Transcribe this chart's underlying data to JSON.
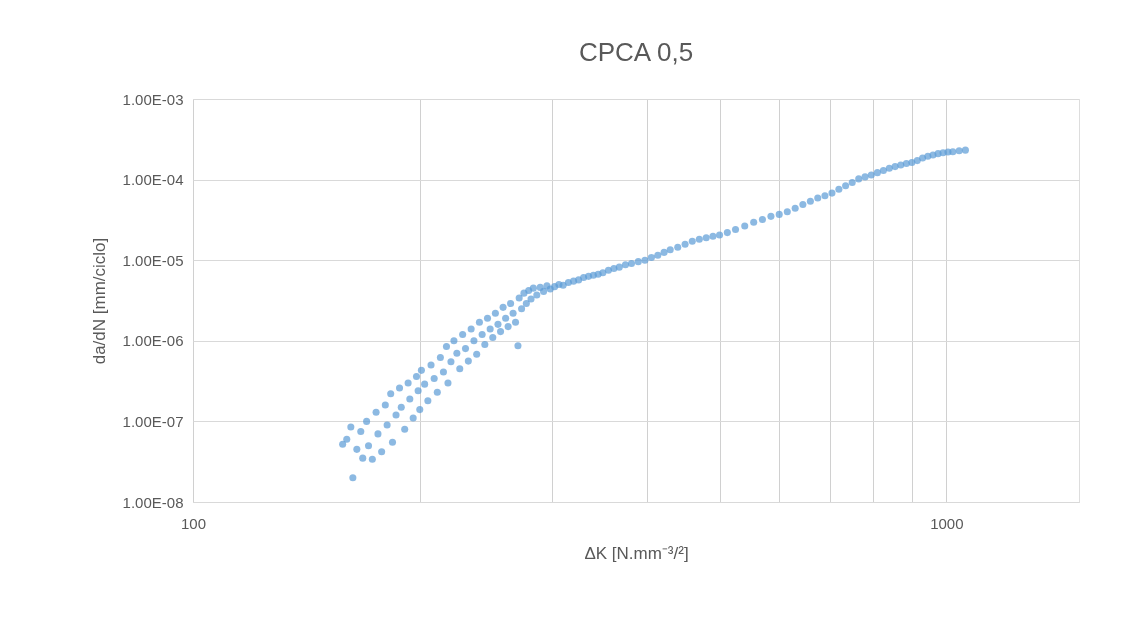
{
  "chart_data": {
    "type": "scatter",
    "title": "CPCA 0,5",
    "xlabel": "ΔK [N.mm⁻³/²]",
    "ylabel": "da/dN [mm/ciclo]",
    "log": "xy",
    "grid": true,
    "marker": "circle",
    "xlim": [
      100,
      1500
    ],
    "ylim": [
      1e-08,
      0.001
    ],
    "xticks": [
      100,
      {
        "value": 200,
        "label": null
      },
      {
        "value": 300,
        "label": null
      },
      {
        "value": 400,
        "label": null
      },
      {
        "value": 500,
        "label": null
      },
      {
        "value": 600,
        "label": null
      },
      {
        "value": 700,
        "label": null
      },
      {
        "value": 800,
        "label": null
      },
      {
        "value": 900,
        "label": null
      },
      1000
    ],
    "yticks": [
      {
        "value": 1e-08,
        "label": "1.00E-08"
      },
      {
        "value": 1e-07,
        "label": "1.00E-07"
      },
      {
        "value": 1e-06,
        "label": "1.00E-06"
      },
      {
        "value": 1e-05,
        "label": "1.00E-05"
      },
      {
        "value": 0.0001,
        "label": "1.00E-04"
      },
      {
        "value": 0.001,
        "label": "1.00E-03"
      }
    ],
    "x": [
      160,
      158,
      162,
      163,
      165,
      167,
      168,
      170,
      171,
      173,
      175,
      176,
      178,
      180,
      181,
      183,
      184,
      186,
      188,
      189,
      191,
      193,
      194,
      196,
      198,
      199,
      200,
      201,
      203,
      205,
      207,
      209,
      211,
      213,
      215,
      217,
      218,
      220,
      222,
      224,
      226,
      228,
      230,
      232,
      234,
      236,
      238,
      240,
      242,
      244,
      246,
      248,
      250,
      252,
      254,
      256,
      258,
      260,
      262,
      264,
      266,
      268,
      270,
      271,
      273,
      275,
      277,
      279,
      281,
      283,
      286,
      289,
      292,
      295,
      298,
      302,
      306,
      310,
      315,
      320,
      325,
      330,
      335,
      340,
      345,
      350,
      356,
      362,
      368,
      375,
      382,
      390,
      398,
      406,
      414,
      422,
      430,
      440,
      450,
      460,
      470,
      480,
      490,
      500,
      512,
      525,
      540,
      555,
      570,
      585,
      600,
      615,
      630,
      645,
      660,
      675,
      690,
      705,
      720,
      735,
      750,
      765,
      780,
      795,
      810,
      825,
      840,
      855,
      870,
      885,
      900,
      915,
      930,
      945,
      960,
      975,
      990,
      1005,
      1020,
      1040,
      1060
    ],
    "series": [
      {
        "color": "#5b9bd5",
        "values": [
          6e-08,
          5.2e-08,
          8.5e-08,
          2e-08,
          4.5e-08,
          7.5e-08,
          3.5e-08,
          1e-07,
          5e-08,
          3.4e-08,
          1.3e-07,
          7e-08,
          4.2e-08,
          1.6e-07,
          9e-08,
          2.2e-07,
          5.5e-08,
          1.2e-07,
          2.6e-07,
          1.5e-07,
          8e-08,
          3e-07,
          1.9e-07,
          1.1e-07,
          3.6e-07,
          2.4e-07,
          1.4e-07,
          4.3e-07,
          2.9e-07,
          1.8e-07,
          5e-07,
          3.4e-07,
          2.3e-07,
          6.2e-07,
          4.1e-07,
          8.5e-07,
          3e-07,
          5.5e-07,
          1e-06,
          7e-07,
          4.5e-07,
          1.2e-06,
          8e-07,
          5.6e-07,
          1.4e-06,
          1e-06,
          6.8e-07,
          1.7e-06,
          1.2e-06,
          9e-07,
          1.9e-06,
          1.4e-06,
          1.1e-06,
          2.2e-06,
          1.6e-06,
          1.3e-06,
          2.6e-06,
          1.9e-06,
          1.5e-06,
          2.9e-06,
          2.2e-06,
          1.7e-06,
          8.7e-07,
          3.4e-06,
          2.5e-06,
          3.9e-06,
          2.9e-06,
          4.2e-06,
          3.3e-06,
          4.5e-06,
          3.7e-06,
          4.6e-06,
          4.1e-06,
          4.8e-06,
          4.4e-06,
          4.7e-06,
          5e-06,
          4.9e-06,
          5.3e-06,
          5.5e-06,
          5.7e-06,
          6.1e-06,
          6.3e-06,
          6.5e-06,
          6.7e-06,
          7e-06,
          7.5e-06,
          7.9e-06,
          8.2e-06,
          8.8e-06,
          9.1e-06,
          9.6e-06,
          1e-05,
          1.08e-05,
          1.15e-05,
          1.25e-05,
          1.35e-05,
          1.45e-05,
          1.58e-05,
          1.72e-05,
          1.82e-05,
          1.9e-05,
          1.98e-05,
          2.05e-05,
          2.2e-05,
          2.4e-05,
          2.65e-05,
          2.95e-05,
          3.2e-05,
          3.5e-05,
          3.7e-05,
          4e-05,
          4.4e-05,
          4.9e-05,
          5.4e-05,
          5.9e-05,
          6.3e-05,
          6.8e-05,
          7.6e-05,
          8.4e-05,
          9.2e-05,
          0.000102,
          0.000108,
          0.000114,
          0.000122,
          0.00013,
          0.000138,
          0.000145,
          0.000152,
          0.000158,
          0.000163,
          0.000172,
          0.000185,
          0.000195,
          0.000202,
          0.00021,
          0.000215,
          0.00022,
          0.000222,
          0.000228,
          0.000232
        ]
      }
    ]
  }
}
